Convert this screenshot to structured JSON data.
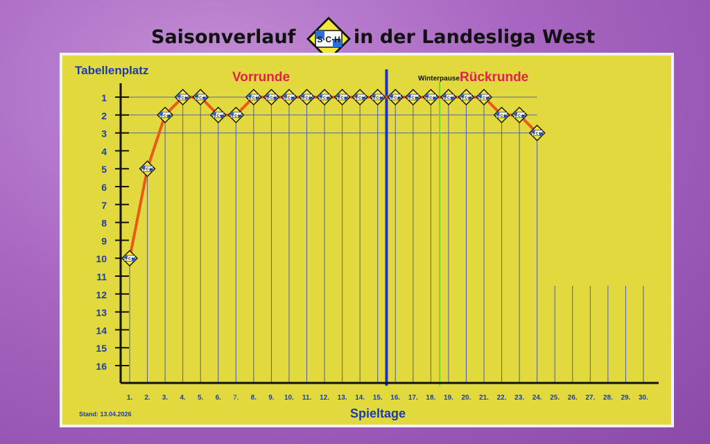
{
  "header": {
    "title_left": "Saisonverlauf",
    "title_right": "in der Landesliga West",
    "logo_text": "S·C·H"
  },
  "stand": "Stand: 13.04.2026",
  "colors": {
    "panel": "#e2d93e",
    "axis_labels": "#1a3cb0",
    "line": "#e85a1a",
    "halfway_line": "#1e2fd0",
    "winter_line": "#7ed321",
    "section_text": "#e0224a"
  },
  "chart_data": {
    "type": "line",
    "xlabel": "Spieltage",
    "ylabel": "Tabellenplatz",
    "x_categories": [
      "1.",
      "2.",
      "3.",
      "4.",
      "5.",
      "6.",
      "7.",
      "8.",
      "9.",
      "10.",
      "11.",
      "12.",
      "13.",
      "14.",
      "15.",
      "16.",
      "17.",
      "18.",
      "19.",
      "20.",
      "21.",
      "22.",
      "23.",
      "24.",
      "25.",
      "26.",
      "27.",
      "28.",
      "29.",
      "30."
    ],
    "y_ticks": [
      1,
      2,
      3,
      4,
      5,
      6,
      7,
      8,
      9,
      10,
      11,
      12,
      13,
      14,
      15,
      16
    ],
    "ylim": [
      1,
      16
    ],
    "y_inverted": true,
    "series": [
      {
        "values": [
          10,
          5,
          2,
          1,
          1,
          2,
          2,
          1,
          1,
          1,
          1,
          1,
          1,
          1,
          1,
          1,
          1,
          1,
          1,
          1,
          1,
          2,
          2,
          3
        ]
      }
    ],
    "sections": {
      "first_half": "Vorrunde",
      "second_half": "Rückrunde",
      "winter_break": "Winterpause"
    },
    "halfway_after": 15,
    "winter_break_after": 18,
    "grid": true
  }
}
